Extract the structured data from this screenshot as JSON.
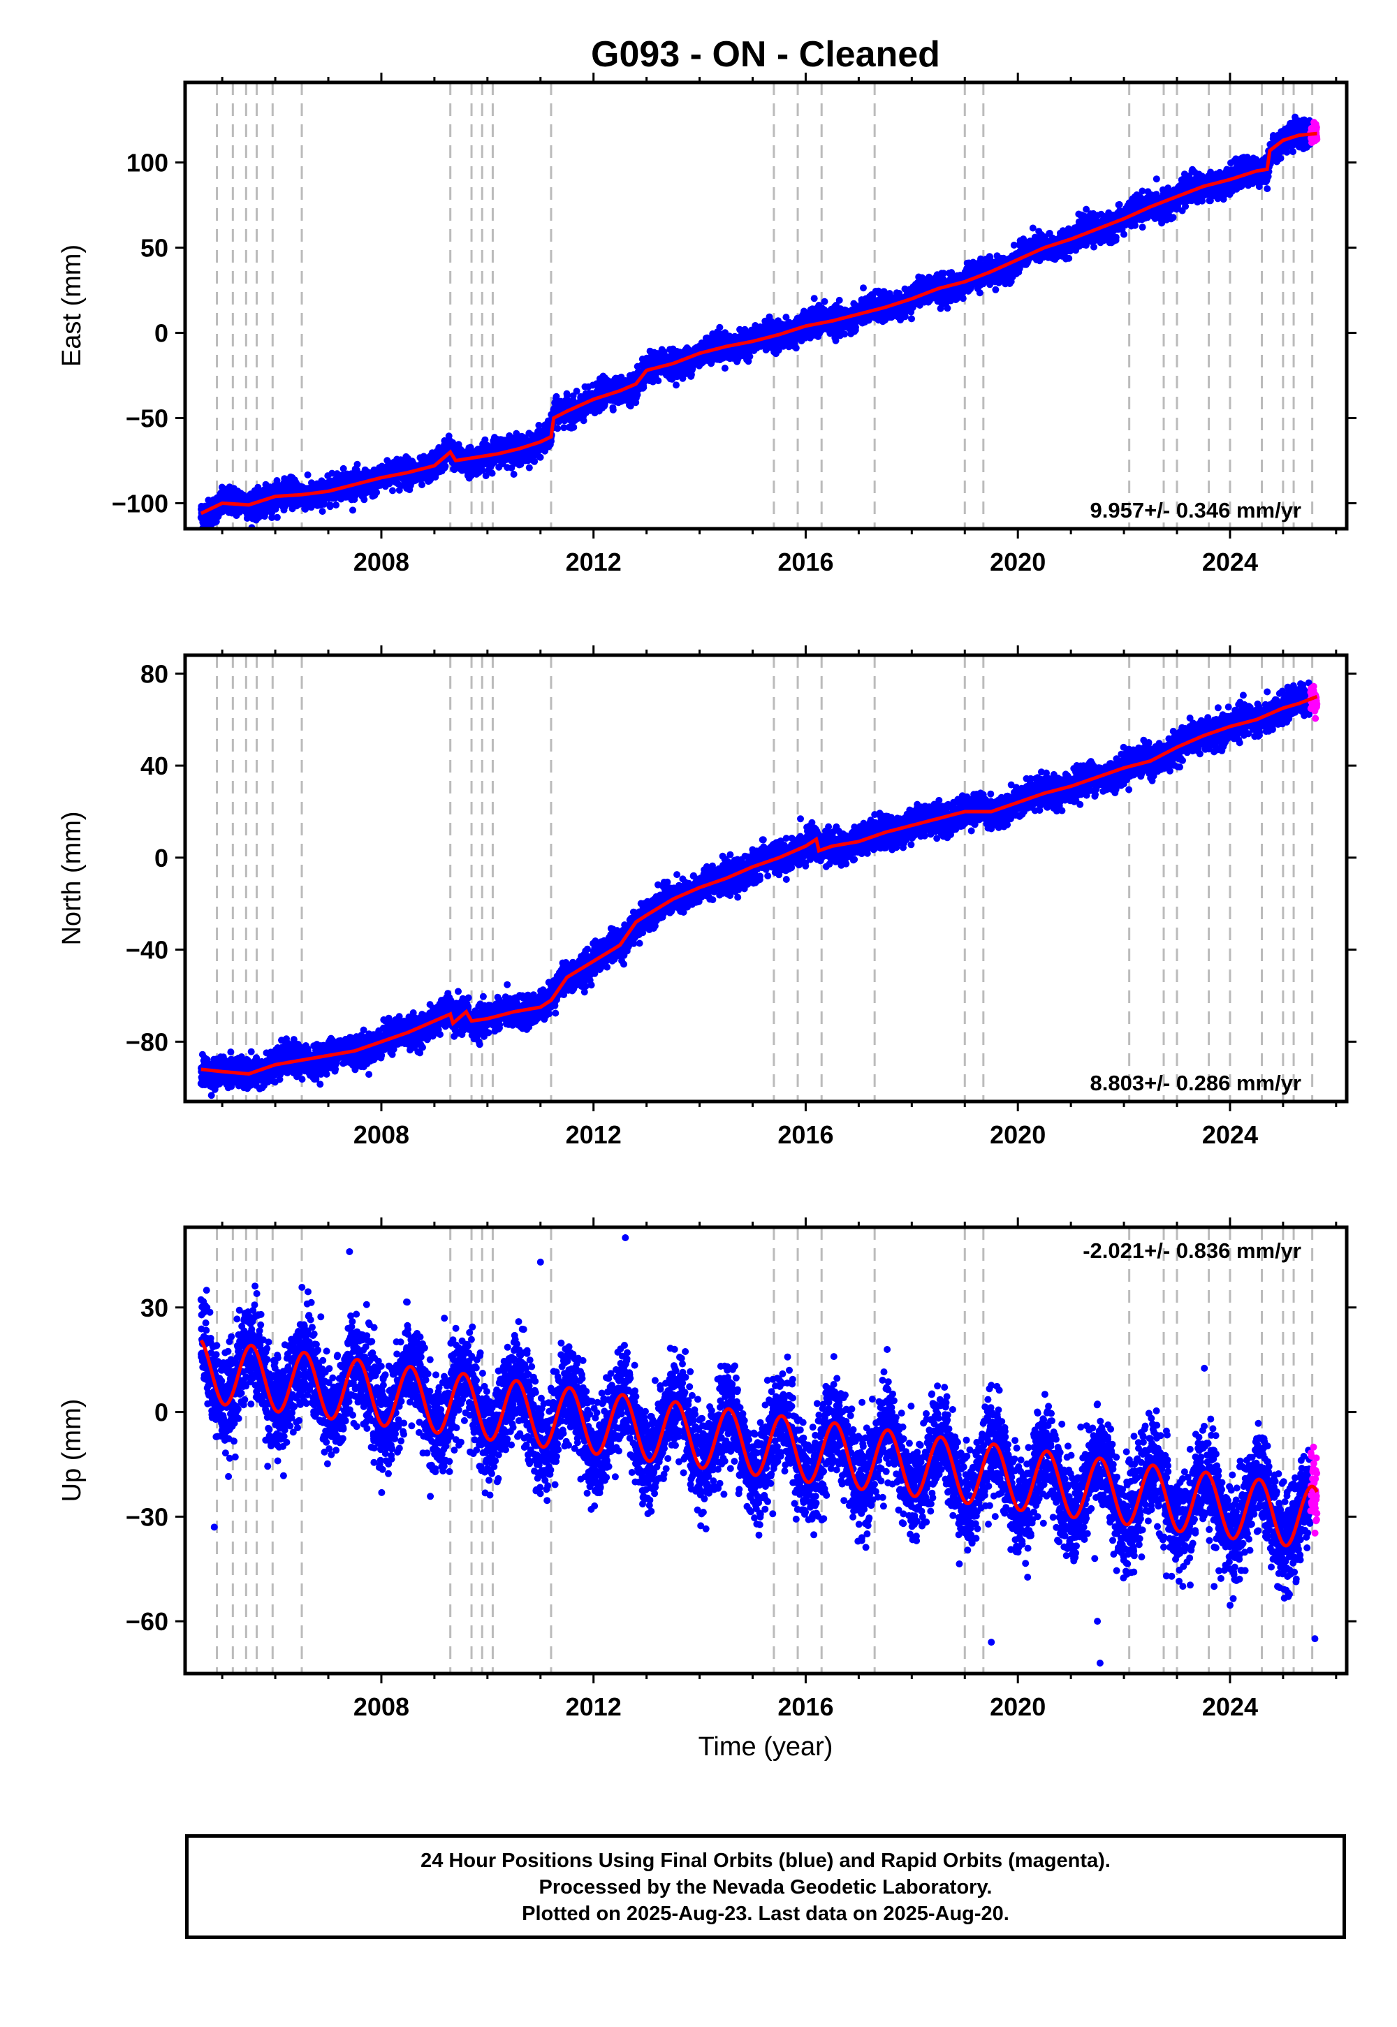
{
  "title": "G093  - ON - Cleaned",
  "xlabel": "Time (year)",
  "footer": {
    "line1": "24 Hour Positions Using Final Orbits (blue) and Rapid Orbits (magenta).",
    "line2": "Processed by the Nevada Geodetic Laboratory.",
    "line3": "Plotted on 2025-Aug-23. Last data on 2025-Aug-20."
  },
  "colors": {
    "final_points": "#0000ff",
    "rapid_points": "#ff00ff",
    "model_line": "#ff0000",
    "event_lines": "#bbbbbb",
    "axes": "#000000"
  },
  "chart_data": [
    {
      "type": "scatter",
      "component": "East",
      "ylabel": "East (mm)",
      "xlim": [
        2004.3,
        2026.2
      ],
      "ylim": [
        -115,
        147
      ],
      "xticks": [
        2008,
        2012,
        2016,
        2020,
        2024
      ],
      "yticks": [
        -100,
        -50,
        0,
        50,
        100
      ],
      "rate_label": "9.957+/- 0.346 mm/yr",
      "rate_position": "bottom-right",
      "grid": false,
      "event_lines_x": [
        2004.9,
        2005.2,
        2005.45,
        2005.65,
        2005.95,
        2006.5,
        2009.3,
        2009.7,
        2009.9,
        2010.1,
        2011.2,
        2015.4,
        2015.85,
        2016.3,
        2017.3,
        2019.0,
        2019.35,
        2022.1,
        2022.75,
        2023.0,
        2023.6,
        2024.0,
        2024.6,
        2025.0,
        2025.2,
        2025.55
      ],
      "model": {
        "x": [
          2004.6,
          2005.0,
          2005.5,
          2006.0,
          2006.5,
          2007.0,
          2007.5,
          2008.0,
          2008.5,
          2009.0,
          2009.3,
          2009.4,
          2009.8,
          2010.2,
          2010.6,
          2011.0,
          2011.2,
          2011.25,
          2011.5,
          2012.0,
          2012.5,
          2012.8,
          2013.0,
          2013.5,
          2014.0,
          2014.5,
          2015.0,
          2015.5,
          2016.0,
          2016.5,
          2017.0,
          2017.5,
          2018.0,
          2018.5,
          2019.0,
          2019.5,
          2020.0,
          2020.5,
          2021.0,
          2021.5,
          2022.0,
          2022.5,
          2023.0,
          2023.5,
          2024.0,
          2024.5,
          2024.7,
          2024.75,
          2025.0,
          2025.3,
          2025.64
        ],
        "y": [
          -106,
          -100,
          -101,
          -96,
          -95,
          -93,
          -89,
          -85,
          -82,
          -78,
          -70,
          -75,
          -73,
          -71,
          -68,
          -64,
          -61,
          -50,
          -46,
          -39,
          -34,
          -30,
          -22,
          -18,
          -12,
          -8,
          -5,
          -1,
          4,
          7,
          11,
          15,
          20,
          26,
          30,
          36,
          43,
          50,
          55,
          61,
          67,
          74,
          80,
          86,
          90,
          95,
          96,
          107,
          113,
          116,
          117
        ]
      },
      "series": [
        {
          "name": "Final Orbits",
          "color": "#0000ff",
          "noise": 3.8,
          "annual_amp": 2.0,
          "x_range": [
            2004.6,
            2025.52
          ]
        },
        {
          "name": "Rapid Orbits",
          "color": "#ff00ff",
          "noise": 3.0,
          "annual_amp": 0,
          "x_range": [
            2025.52,
            2025.64
          ]
        }
      ]
    },
    {
      "type": "scatter",
      "component": "North",
      "ylabel": "North (mm)",
      "xlim": [
        2004.3,
        2026.2
      ],
      "ylim": [
        -106,
        88
      ],
      "xticks": [
        2008,
        2012,
        2016,
        2020,
        2024
      ],
      "yticks": [
        -80,
        -40,
        0,
        40,
        80
      ],
      "rate_label": "8.803+/- 0.286 mm/yr",
      "rate_position": "bottom-right",
      "grid": false,
      "event_lines_x": [
        2004.9,
        2005.2,
        2005.45,
        2005.65,
        2005.95,
        2006.5,
        2009.3,
        2009.7,
        2009.9,
        2010.1,
        2011.2,
        2015.4,
        2015.85,
        2016.3,
        2017.3,
        2019.0,
        2019.35,
        2022.1,
        2022.75,
        2023.0,
        2023.6,
        2024.0,
        2024.6,
        2025.0,
        2025.2,
        2025.55
      ],
      "model": {
        "x": [
          2004.6,
          2005.0,
          2005.5,
          2006.0,
          2006.5,
          2007.0,
          2007.5,
          2008.0,
          2008.5,
          2009.0,
          2009.3,
          2009.35,
          2009.6,
          2009.7,
          2010.0,
          2010.5,
          2011.0,
          2011.2,
          2011.5,
          2012.0,
          2012.5,
          2012.8,
          2013.0,
          2013.5,
          2014.0,
          2014.5,
          2015.0,
          2015.5,
          2016.0,
          2016.2,
          2016.25,
          2016.5,
          2017.0,
          2017.5,
          2018.0,
          2018.5,
          2019.0,
          2019.5,
          2020.0,
          2020.5,
          2021.0,
          2021.5,
          2022.0,
          2022.5,
          2023.0,
          2023.5,
          2024.0,
          2024.5,
          2025.0,
          2025.3,
          2025.64
        ],
        "y": [
          -92,
          -93,
          -94,
          -90,
          -88,
          -86,
          -84,
          -80,
          -76,
          -71,
          -68,
          -72,
          -67,
          -71,
          -70,
          -67,
          -65,
          -62,
          -52,
          -45,
          -38,
          -28,
          -25,
          -18,
          -13,
          -9,
          -4,
          0,
          5,
          8,
          3,
          5,
          7,
          11,
          14,
          17,
          20,
          20,
          24,
          28,
          31,
          35,
          39,
          42,
          48,
          53,
          57,
          60,
          65,
          67,
          70
        ]
      },
      "series": [
        {
          "name": "Final Orbits",
          "color": "#0000ff",
          "noise": 3.2,
          "annual_amp": 1.5,
          "x_range": [
            2004.6,
            2025.52
          ]
        },
        {
          "name": "Rapid Orbits",
          "color": "#ff00ff",
          "noise": 3.0,
          "annual_amp": 0,
          "x_range": [
            2025.52,
            2025.64
          ]
        }
      ]
    },
    {
      "type": "scatter",
      "component": "Up",
      "ylabel": "Up (mm)",
      "xlim": [
        2004.3,
        2026.2
      ],
      "ylim": [
        -75,
        53
      ],
      "xticks": [
        2008,
        2012,
        2016,
        2020,
        2024
      ],
      "yticks": [
        -60,
        -30,
        0,
        30
      ],
      "rate_label": "-2.021+/- 0.836 mm/yr",
      "rate_position": "top-right",
      "grid": false,
      "event_lines_x": [
        2004.9,
        2005.2,
        2005.45,
        2005.65,
        2005.95,
        2006.5,
        2009.3,
        2009.7,
        2009.9,
        2010.1,
        2011.2,
        2015.4,
        2015.85,
        2016.3,
        2017.3,
        2019.0,
        2019.35,
        2022.1,
        2022.75,
        2023.0,
        2023.6,
        2024.0,
        2024.6,
        2025.0,
        2025.2,
        2025.55
      ],
      "model": {
        "trend_start": 12.0,
        "trend_rate": -2.021,
        "trend_origin": 2004.6,
        "annual_amp": 9.0,
        "annual_peak_phase": 0.55,
        "x_range": [
          2004.6,
          2025.64
        ]
      },
      "series": [
        {
          "name": "Final Orbits",
          "color": "#0000ff",
          "noise": 7.0,
          "x_range": [
            2004.6,
            2025.52
          ]
        },
        {
          "name": "Rapid Orbits",
          "color": "#ff00ff",
          "noise": 5.0,
          "x_range": [
            2025.52,
            2025.64
          ]
        }
      ],
      "outliers": [
        {
          "x": 2004.85,
          "y": -33
        },
        {
          "x": 2012.6,
          "y": 50
        },
        {
          "x": 2019.5,
          "y": -66
        },
        {
          "x": 2021.55,
          "y": -72
        },
        {
          "x": 2021.5,
          "y": -60
        },
        {
          "x": 2021.45,
          "y": -42
        },
        {
          "x": 2022.8,
          "y": -47
        },
        {
          "x": 2023.7,
          "y": -50
        },
        {
          "x": 2025.6,
          "y": -65
        },
        {
          "x": 2007.4,
          "y": 46
        },
        {
          "x": 2011.0,
          "y": 43
        }
      ]
    }
  ]
}
